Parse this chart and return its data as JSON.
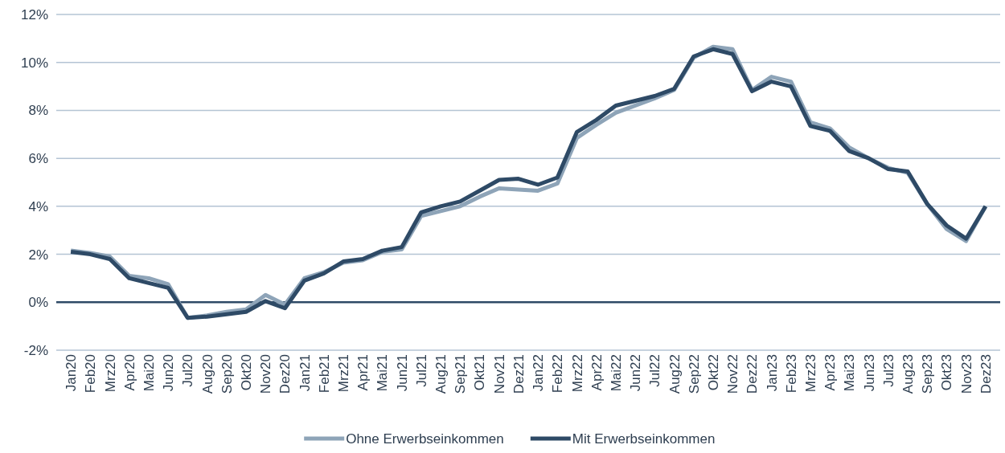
{
  "chart_data": {
    "type": "line",
    "categories": [
      "Jan20",
      "Feb20",
      "Mrz20",
      "Apr20",
      "Mai20",
      "Jun20",
      "Jul20",
      "Aug20",
      "Sep20",
      "Okt20",
      "Nov20",
      "Dez20",
      "Jan21",
      "Feb21",
      "Mrz21",
      "Apr21",
      "Mai21",
      "Jun21",
      "Jul21",
      "Aug21",
      "Sep21",
      "Okt21",
      "Nov21",
      "Dez21",
      "Jan22",
      "Feb22",
      "Mrz22",
      "Apr22",
      "Mai22",
      "Jun22",
      "Jul22",
      "Aug22",
      "Sep22",
      "Okt22",
      "Nov22",
      "Dez22",
      "Jan23",
      "Feb23",
      "Mrz23",
      "Apr23",
      "Mai23",
      "Jun23",
      "Jul23",
      "Aug23",
      "Sep23",
      "Okt23",
      "Nov23",
      "Dez23"
    ],
    "series": [
      {
        "name": "Ohne Erwerbseinkommen",
        "color": "#8ea4b8",
        "values": [
          2.15,
          2.05,
          1.9,
          1.1,
          1.0,
          0.75,
          -0.65,
          -0.55,
          -0.4,
          -0.3,
          0.3,
          -0.1,
          1.0,
          1.25,
          1.65,
          1.75,
          2.1,
          2.2,
          3.6,
          3.8,
          4.0,
          4.4,
          4.75,
          4.7,
          4.65,
          4.95,
          6.85,
          7.4,
          7.9,
          8.2,
          8.5,
          8.85,
          10.2,
          10.65,
          10.55,
          8.85,
          9.4,
          9.2,
          7.5,
          7.25,
          6.45,
          6.0,
          5.6,
          5.4,
          4.1,
          3.05,
          2.55,
          4.0
        ]
      },
      {
        "name": "Mit Erwerbseinkommen",
        "color": "#2e4a66",
        "values": [
          2.1,
          2.0,
          1.8,
          1.0,
          0.8,
          0.6,
          -0.65,
          -0.6,
          -0.5,
          -0.4,
          0.05,
          -0.25,
          0.9,
          1.2,
          1.7,
          1.8,
          2.15,
          2.3,
          3.75,
          4.0,
          4.2,
          4.65,
          5.1,
          5.15,
          4.9,
          5.2,
          7.1,
          7.6,
          8.2,
          8.4,
          8.6,
          8.9,
          10.25,
          10.55,
          10.35,
          8.8,
          9.2,
          9.0,
          7.35,
          7.15,
          6.3,
          6.0,
          5.55,
          5.45,
          4.1,
          3.2,
          2.65,
          4.0
        ]
      }
    ],
    "ylim": [
      -2,
      12
    ],
    "yticks": [
      {
        "value": -2,
        "label": "-2%"
      },
      {
        "value": 0,
        "label": "0%"
      },
      {
        "value": 2,
        "label": "2%"
      },
      {
        "value": 4,
        "label": "4%"
      },
      {
        "value": 6,
        "label": "6%"
      },
      {
        "value": 8,
        "label": "8%"
      },
      {
        "value": 10,
        "label": "10%"
      },
      {
        "value": 12,
        "label": "12%"
      }
    ],
    "ref_lines": [
      {
        "axis": "y",
        "value": 0,
        "color": "#2e4a66"
      }
    ],
    "grid": "y",
    "legend": "bottom",
    "marker": "none",
    "line_style": "solid"
  }
}
